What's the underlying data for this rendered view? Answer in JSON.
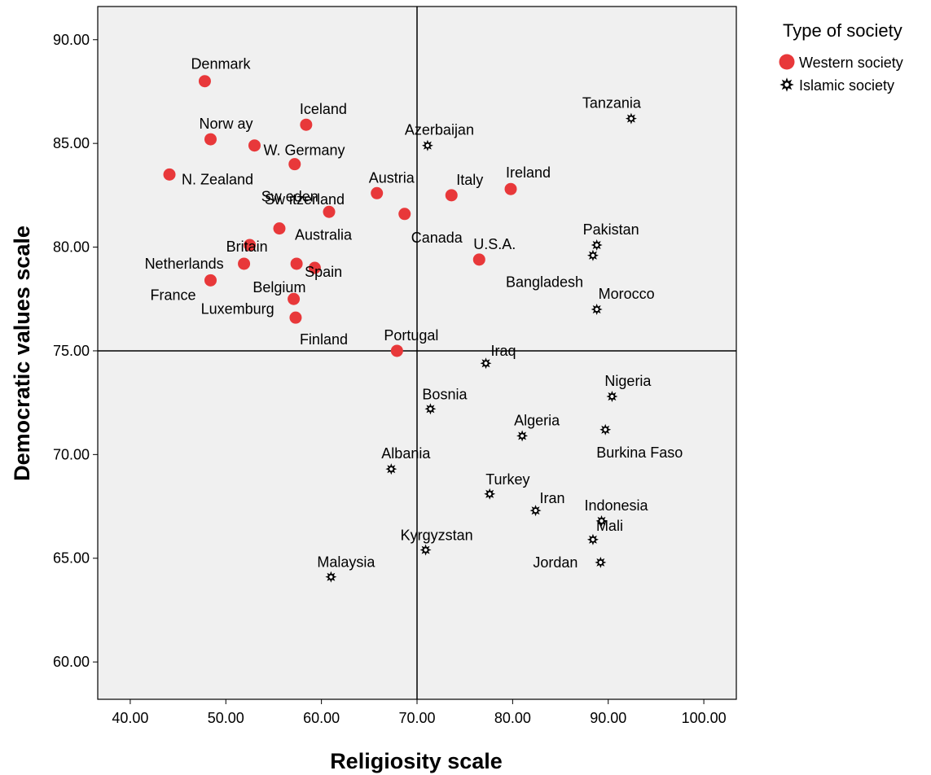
{
  "chart_data": {
    "type": "scatter",
    "xlabel": "Religiosity scale",
    "ylabel": "Democratic values scale",
    "xlim": [
      36.6,
      103.4
    ],
    "ylim": [
      58.2,
      91.6
    ],
    "xticks": [
      "40.00",
      "50.00",
      "60.00",
      "70.00",
      "80.00",
      "90.00",
      "100.00"
    ],
    "yticks": [
      "60.00",
      "65.00",
      "70.00",
      "75.00",
      "80.00",
      "85.00",
      "90.00"
    ],
    "reference_lines": {
      "x": 70.0,
      "y": 75.0
    },
    "plot_background": "#f0f0f0",
    "grid": false,
    "legend": {
      "title": "Type of society",
      "position": "top-right",
      "entries": [
        {
          "name": "Western society",
          "marker": "circle",
          "color": "#e8383a"
        },
        {
          "name": "Islamic society",
          "marker": "star",
          "color": "#000000"
        }
      ]
    },
    "series": [
      {
        "name": "Western society",
        "marker": "circle",
        "color": "#e8383a",
        "points": [
          {
            "label": "Denmark",
            "x": 47.8,
            "y": 88.0
          },
          {
            "label": "Iceland",
            "x": 58.4,
            "y": 85.9
          },
          {
            "label": "Norw ay",
            "x": 48.4,
            "y": 85.2
          },
          {
            "label": "W. Germany",
            "x": 53.0,
            "y": 84.9
          },
          {
            "label": "N. Zealand",
            "x": 44.1,
            "y": 83.5
          },
          {
            "label": "Sw eden",
            "x": 57.2,
            "y": 84.0
          },
          {
            "label": "Austria",
            "x": 65.8,
            "y": 82.6
          },
          {
            "label": "Italy",
            "x": 73.6,
            "y": 82.5
          },
          {
            "label": "Ireland",
            "x": 79.8,
            "y": 82.8
          },
          {
            "label": "Sw itzerland",
            "x": 60.8,
            "y": 81.7
          },
          {
            "label": "Canada",
            "x": 68.7,
            "y": 81.6
          },
          {
            "label": "Britain",
            "x": 52.5,
            "y": 80.1
          },
          {
            "label": "Australia",
            "x": 55.6,
            "y": 80.9
          },
          {
            "label": "Netherlands",
            "x": 51.9,
            "y": 79.2
          },
          {
            "label": "Spain",
            "x": 57.4,
            "y": 79.2
          },
          {
            "label": "U.S.A.",
            "x": 76.5,
            "y": 79.4
          },
          {
            "label": "Belgium",
            "x": 59.3,
            "y": 79.0
          },
          {
            "label": "France",
            "x": 48.4,
            "y": 78.4
          },
          {
            "label": "Luxemburg",
            "x": 57.1,
            "y": 77.5
          },
          {
            "label": "Finland",
            "x": 57.3,
            "y": 76.6
          },
          {
            "label": "Portugal",
            "x": 67.9,
            "y": 75.0
          }
        ]
      },
      {
        "name": "Islamic society",
        "marker": "star",
        "color": "#000000",
        "points": [
          {
            "label": "Tanzania",
            "x": 92.4,
            "y": 86.2
          },
          {
            "label": "Azerbaijan",
            "x": 71.1,
            "y": 84.9
          },
          {
            "label": "Pakistan",
            "x": 88.8,
            "y": 80.1
          },
          {
            "label": "Bangladesh",
            "x": 88.4,
            "y": 79.6
          },
          {
            "label": "Morocco",
            "x": 88.8,
            "y": 77.0
          },
          {
            "label": "Iraq",
            "x": 77.2,
            "y": 74.4
          },
          {
            "label": "Nigeria",
            "x": 90.4,
            "y": 72.8
          },
          {
            "label": "Bosnia",
            "x": 71.4,
            "y": 72.2
          },
          {
            "label": "Burkina Faso",
            "x": 89.7,
            "y": 71.2
          },
          {
            "label": "Algeria",
            "x": 81.0,
            "y": 70.9
          },
          {
            "label": "Albania",
            "x": 67.3,
            "y": 69.3
          },
          {
            "label": "Turkey",
            "x": 77.6,
            "y": 68.1
          },
          {
            "label": "Iran",
            "x": 82.4,
            "y": 67.3
          },
          {
            "label": "Indonesia",
            "x": 89.3,
            "y": 66.8
          },
          {
            "label": "Mali",
            "x": 88.4,
            "y": 65.9
          },
          {
            "label": "Kyrgyzstan",
            "x": 70.9,
            "y": 65.4
          },
          {
            "label": "Jordan",
            "x": 89.2,
            "y": 64.8
          },
          {
            "label": "Malaysia",
            "x": 61.0,
            "y": 64.1
          }
        ]
      }
    ]
  }
}
